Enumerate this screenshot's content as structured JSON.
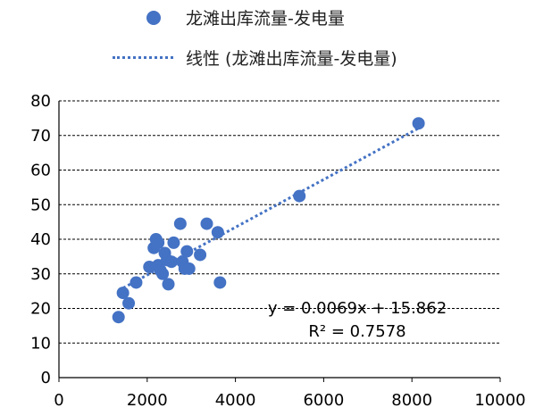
{
  "chart_data": {
    "type": "scatter",
    "title": "",
    "xlabel": "",
    "ylabel": "",
    "xlim": [
      0,
      10000
    ],
    "ylim": [
      0,
      80
    ],
    "xticks": [
      0,
      2000,
      4000,
      6000,
      8000,
      10000
    ],
    "yticks": [
      0,
      10,
      20,
      30,
      40,
      50,
      60,
      70,
      80
    ],
    "grid": "horizontal dashed",
    "legend_position": "top",
    "colors": {
      "series": "#4472c4"
    },
    "series": [
      {
        "name": "龙滩出库流量-发电量",
        "points": [
          [
            1350,
            17.5
          ],
          [
            1450,
            24.5
          ],
          [
            1580,
            21.5
          ],
          [
            1750,
            27.5
          ],
          [
            2050,
            32.0
          ],
          [
            2150,
            37.5
          ],
          [
            2200,
            40.0
          ],
          [
            2250,
            39.0
          ],
          [
            2250,
            32.5
          ],
          [
            2300,
            31.0
          ],
          [
            2350,
            30.0
          ],
          [
            2400,
            36.0
          ],
          [
            2450,
            34.0
          ],
          [
            2480,
            27.0
          ],
          [
            2550,
            33.5
          ],
          [
            2600,
            39.0
          ],
          [
            2750,
            44.5
          ],
          [
            2800,
            33.5
          ],
          [
            2850,
            31.5
          ],
          [
            2900,
            36.5
          ],
          [
            2950,
            31.5
          ],
          [
            3200,
            35.5
          ],
          [
            3350,
            44.5
          ],
          [
            3600,
            42.0
          ],
          [
            3650,
            27.5
          ],
          [
            5450,
            52.5
          ],
          [
            8150,
            73.5
          ]
        ]
      }
    ],
    "trendline": {
      "name": "线性 (龙滩出库流量-发电量)",
      "slope": 0.0069,
      "intercept": 15.862,
      "x_range": [
        1350,
        8150
      ],
      "equation": "y = 0.0069x + 15.862",
      "r_squared": "R² = 0.7578"
    }
  }
}
